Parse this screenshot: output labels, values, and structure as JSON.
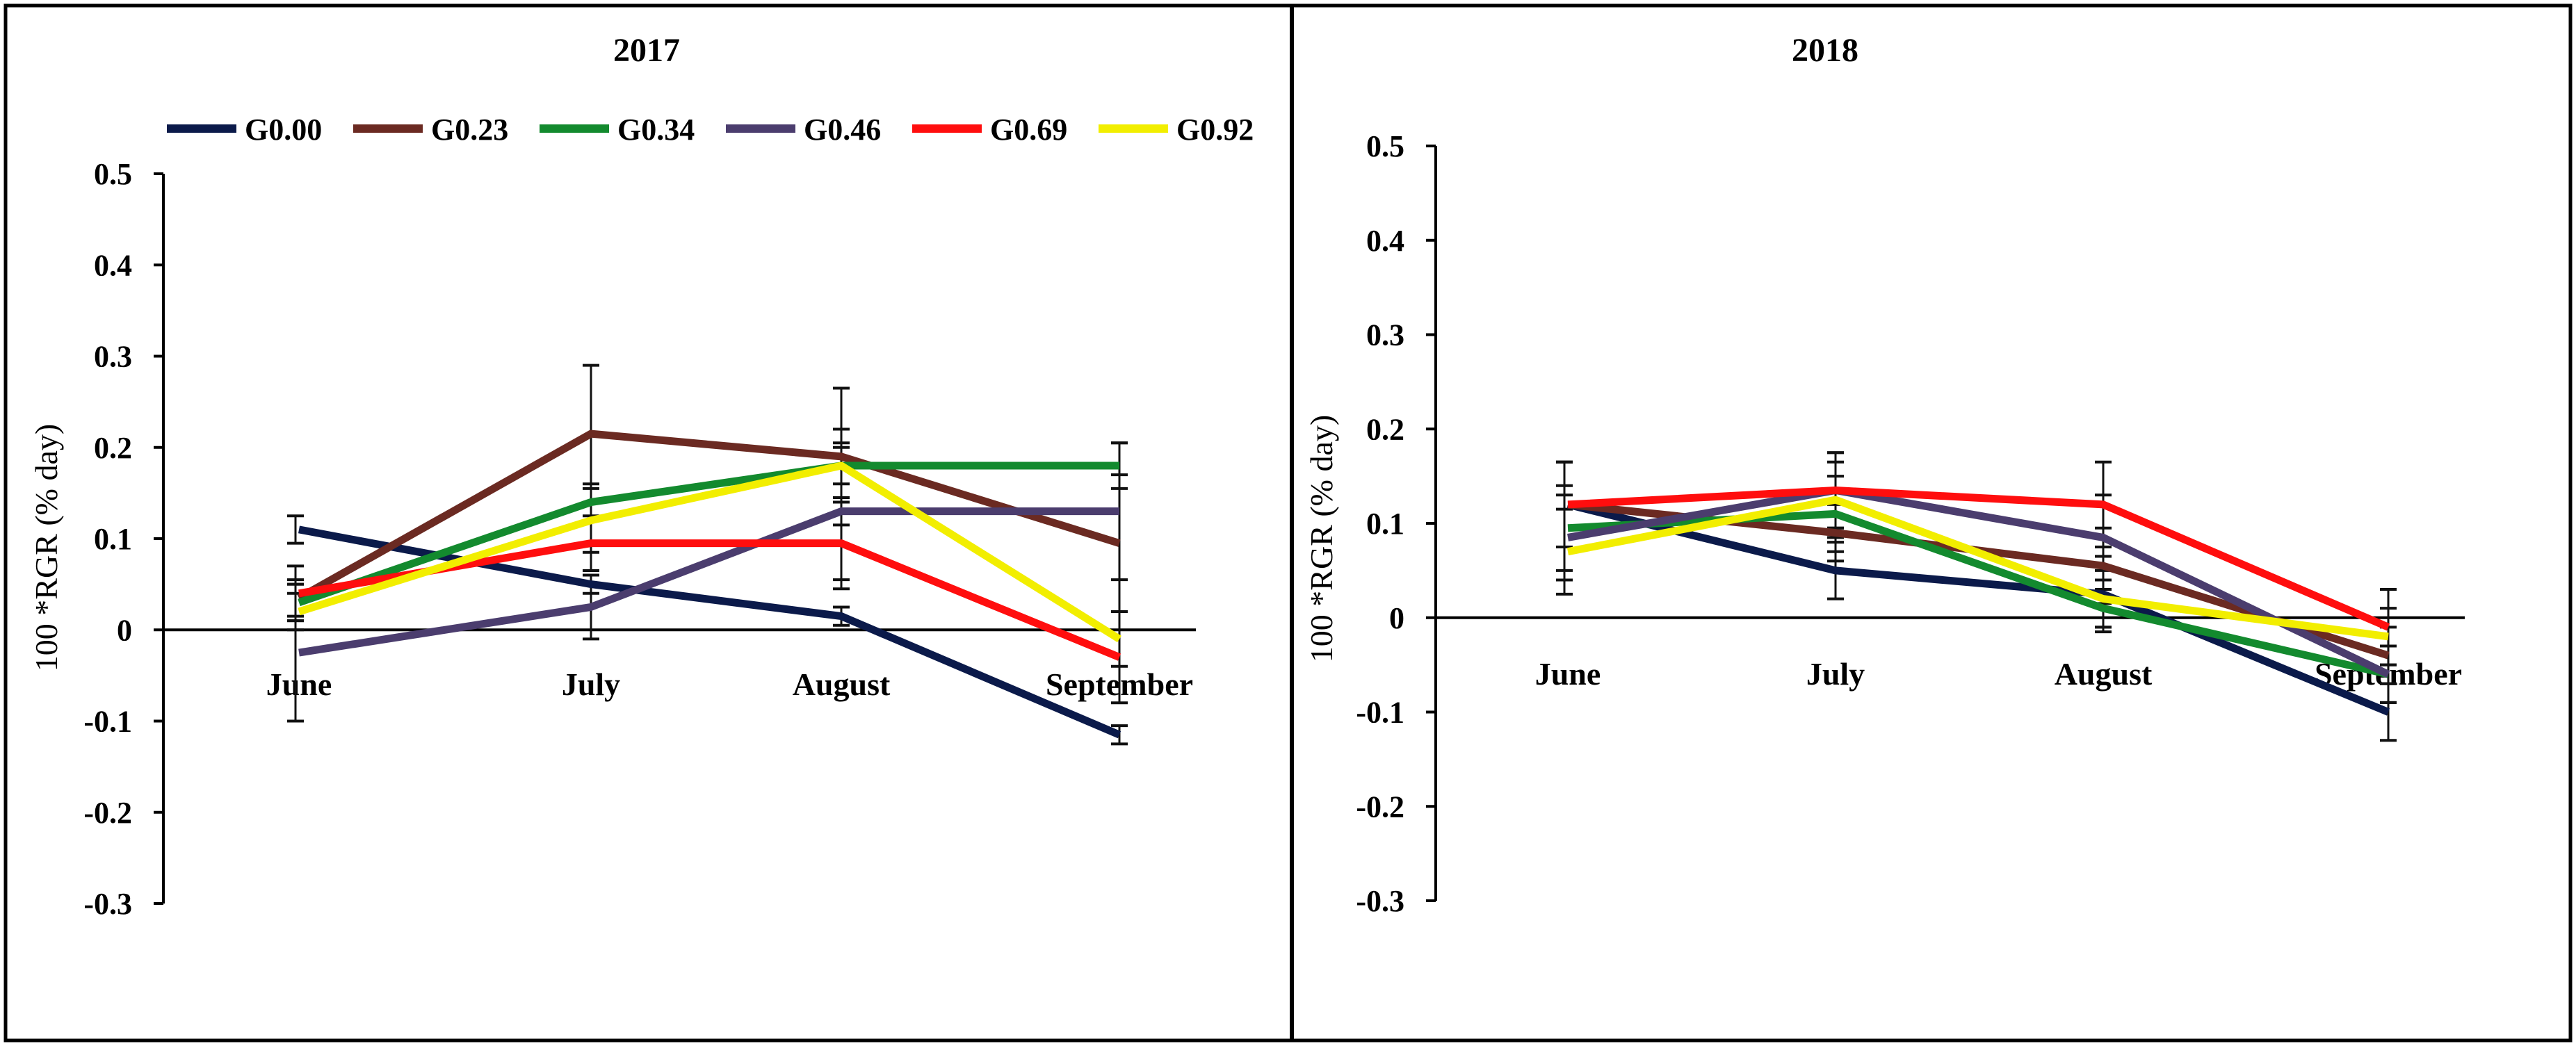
{
  "chart_data": [
    {
      "type": "line",
      "title": "2017",
      "ylabel": "100 *RGR (% day)",
      "xlabel": "",
      "categories": [
        "June",
        "July",
        "August",
        "September"
      ],
      "ylim": [
        -0.3,
        0.5
      ],
      "yticks": [
        "0.5",
        "0.4",
        "0.3",
        "0.2",
        "0.1",
        "0",
        "-0.1",
        "-0.2",
        "-0.3"
      ],
      "legend": "top",
      "series": [
        {
          "name": "G0.00",
          "color": "#0b1a4a",
          "values": [
            0.11,
            0.05,
            0.015,
            -0.115
          ],
          "errors": [
            0.015,
            0.01,
            0.01,
            0.01
          ]
        },
        {
          "name": "G0.23",
          "color": "#6b2a22",
          "values": [
            0.035,
            0.215,
            0.19,
            0.095
          ],
          "errors": [
            0.02,
            0.075,
            0.075,
            0.075
          ]
        },
        {
          "name": "G0.34",
          "color": "#138a2e",
          "values": [
            0.03,
            0.14,
            0.18,
            0.18
          ],
          "errors": [
            0.02,
            0.02,
            0.02,
            0.025
          ]
        },
        {
          "name": "G0.46",
          "color": "#4b3d6e",
          "values": [
            -0.025,
            0.025,
            0.13,
            0.13
          ],
          "errors": [
            0.075,
            0.035,
            0.075,
            0.075
          ]
        },
        {
          "name": "G0.69",
          "color": "#ff0e0e",
          "values": [
            0.04,
            0.095,
            0.095,
            -0.03
          ],
          "errors": [
            0.03,
            0.03,
            0.05,
            0.05
          ]
        },
        {
          "name": "G0.92",
          "color": "#f2ee00",
          "values": [
            0.02,
            0.12,
            0.18,
            -0.01
          ],
          "errors": [
            0.02,
            0.035,
            0.04,
            0.03
          ]
        }
      ]
    },
    {
      "type": "line",
      "title": "2018",
      "ylabel": "100 *RGR (% day)",
      "xlabel": "",
      "categories": [
        "June",
        "July",
        "August",
        "September"
      ],
      "ylim": [
        -0.3,
        0.5
      ],
      "yticks": [
        "0.5",
        "0.4",
        "0.3",
        "0.2",
        "0.1",
        "0",
        "-0.1",
        "-0.2",
        "-0.3"
      ],
      "series": [
        {
          "name": "G0.00",
          "color": "#0b1a4a",
          "values": [
            0.12,
            0.05,
            0.025,
            -0.1
          ],
          "errors": [
            0.045,
            0.03,
            0.04,
            0.03
          ]
        },
        {
          "name": "G0.23",
          "color": "#6b2a22",
          "values": [
            0.12,
            0.09,
            0.055,
            -0.04
          ],
          "errors": [
            0.045,
            0.03,
            0.04,
            0.03
          ]
        },
        {
          "name": "G0.34",
          "color": "#138a2e",
          "values": [
            0.095,
            0.11,
            0.01,
            -0.06
          ],
          "errors": [
            0.045,
            0.04,
            0.02,
            0.03
          ]
        },
        {
          "name": "G0.46",
          "color": "#4b3d6e",
          "values": [
            0.085,
            0.135,
            0.085,
            -0.06
          ],
          "errors": [
            0.045,
            0.04,
            0.045,
            0.03
          ]
        },
        {
          "name": "G0.69",
          "color": "#ff0e0e",
          "values": [
            0.12,
            0.135,
            0.12,
            -0.01
          ],
          "errors": [
            0.045,
            0.04,
            0.045,
            0.04
          ]
        },
        {
          "name": "G0.92",
          "color": "#f2ee00",
          "values": [
            0.07,
            0.125,
            0.02,
            -0.02
          ],
          "errors": [
            0.045,
            0.04,
            0.03,
            0.03
          ]
        }
      ]
    }
  ]
}
